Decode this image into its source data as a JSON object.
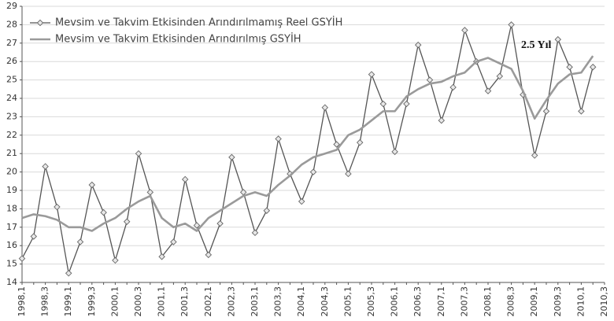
{
  "chart_data": {
    "type": "line",
    "categories": [
      "1998,1",
      null,
      "1998,3",
      null,
      "1999,1",
      null,
      "1999,3",
      null,
      "2000,1",
      null,
      "2000,3",
      null,
      "2001,1",
      null,
      "2001,3",
      null,
      "2002,1",
      null,
      "2002,3",
      null,
      "2003,1",
      null,
      "2003,3",
      null,
      "2004,1",
      null,
      "2004,3",
      null,
      "2005,1",
      null,
      "2005,3",
      null,
      "2006,1",
      null,
      "2006,3",
      null,
      "2007,1",
      null,
      "2007,3",
      null,
      "2008,1",
      null,
      "2008,3",
      null,
      "2009,1",
      null,
      "2009,3",
      null,
      "2010,1",
      null,
      "2010,3"
    ],
    "series": [
      {
        "name": "Mevsim ve Takvim Etkisinden Arındırılmamış Reel GSYİH",
        "color": "#555555",
        "marker": "diamond",
        "values": [
          15.3,
          16.5,
          20.3,
          18.1,
          14.5,
          16.2,
          19.3,
          17.8,
          15.2,
          17.3,
          21.0,
          18.9,
          15.4,
          16.2,
          19.6,
          17.1,
          15.5,
          17.2,
          20.8,
          18.9,
          16.7,
          17.9,
          21.8,
          19.9,
          18.4,
          20.0,
          23.5,
          21.5,
          19.9,
          21.6,
          25.3,
          23.7,
          21.1,
          23.7,
          26.9,
          25.0,
          22.8,
          24.6,
          27.7,
          26.0,
          24.4,
          25.2,
          28.0,
          24.2,
          20.9,
          23.3,
          27.2,
          25.7,
          23.3,
          25.7,
          null
        ]
      },
      {
        "name": "Mevsim ve Takvim Etkisinden Arındırılmış GSYİH",
        "color": "#9a9a9a",
        "values": [
          17.5,
          17.7,
          17.6,
          17.4,
          17.0,
          17.0,
          16.8,
          17.2,
          17.5,
          18.0,
          18.4,
          18.7,
          17.5,
          17.0,
          17.2,
          16.8,
          17.5,
          17.9,
          18.3,
          18.7,
          18.9,
          18.7,
          19.3,
          19.8,
          20.4,
          20.8,
          21.0,
          21.2,
          22.0,
          22.3,
          22.8,
          23.3,
          23.3,
          24.1,
          24.5,
          24.8,
          24.9,
          25.2,
          25.4,
          26.0,
          26.2,
          25.9,
          25.6,
          24.4,
          22.9,
          23.9,
          24.8,
          25.3,
          25.4,
          26.3,
          null
        ]
      }
    ],
    "annotation": "2.5 Yıl",
    "ylim": [
      14,
      29
    ],
    "yticks": [
      14,
      15,
      16,
      17,
      18,
      19,
      20,
      21,
      22,
      23,
      24,
      25,
      26,
      27,
      28,
      29
    ],
    "grid": true,
    "legend": "upper left"
  }
}
